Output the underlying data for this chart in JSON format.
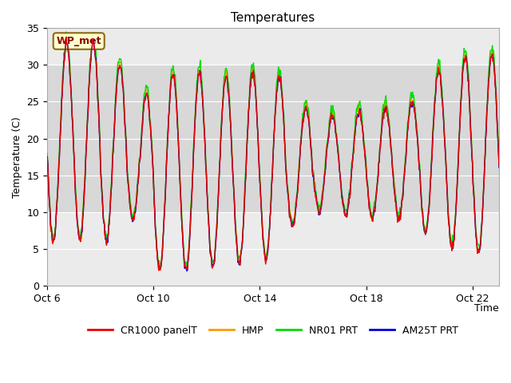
{
  "title": "Temperatures",
  "ylabel": "Temperature (C)",
  "xlabel": "Time",
  "ylim": [
    0,
    35
  ],
  "xlim_days": [
    0,
    17
  ],
  "plot_bg": "#ebebeb",
  "band_color": "#d8d8d8",
  "band_ymin": 10,
  "band_ymax": 30,
  "grid_color": "#ffffff",
  "annotation_text": "WP_met",
  "annotation_bg": "#ffffcc",
  "annotation_border": "#8b6914",
  "annotation_text_color": "#8b0000",
  "series_colors": {
    "CR1000 panelT": "#ee0000",
    "HMP": "#ff9900",
    "NR01 PRT": "#00dd00",
    "AM25T PRT": "#0000dd"
  },
  "tick_labels_x": [
    "Oct 6",
    "Oct 10",
    "Oct 14",
    "Oct 18",
    "Oct 22"
  ],
  "tick_positions_x": [
    0,
    4,
    8,
    12,
    16
  ],
  "tick_labels_y": [
    "0",
    "5",
    "10",
    "15",
    "20",
    "25",
    "30",
    "35"
  ],
  "tick_positions_y": [
    0,
    5,
    10,
    15,
    20,
    25,
    30,
    35
  ],
  "figsize": [
    6.4,
    4.8
  ],
  "dpi": 100
}
